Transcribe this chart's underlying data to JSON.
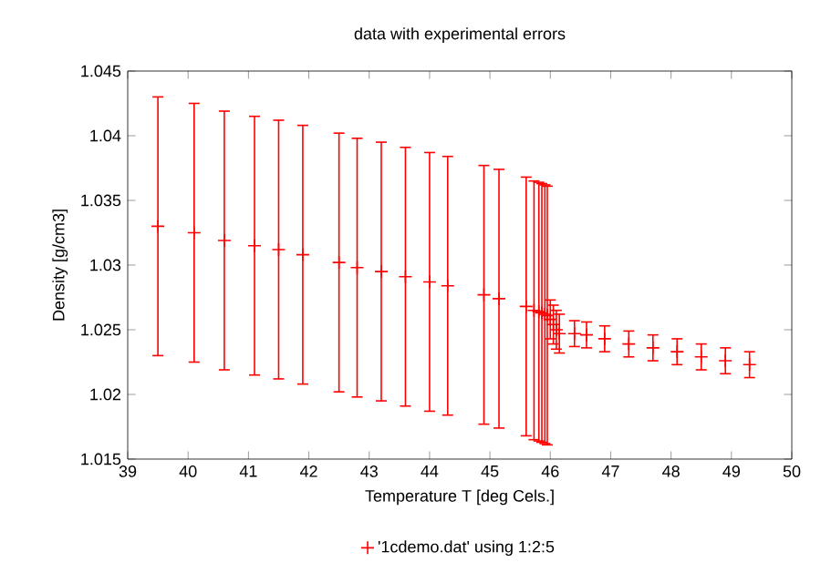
{
  "chart_data": {
    "type": "scatter",
    "title": "data with experimental errors",
    "xlabel": "Temperature T  [deg Cels.]",
    "ylabel": "Density [g/cm3]",
    "xlim": [
      39,
      50
    ],
    "xticks": [
      39,
      40,
      41,
      42,
      43,
      44,
      45,
      46,
      47,
      48,
      49,
      50
    ],
    "ylim": [
      1.015,
      1.045
    ],
    "yticks": [
      1.015,
      1.02,
      1.025,
      1.03,
      1.035,
      1.04,
      1.045
    ],
    "legend": "bottom",
    "marker": "cross",
    "grid": false,
    "series": [
      {
        "name": "'1cdemo.dat' using 1:2:5",
        "color": "#ff0000",
        "x": [
          39.5,
          40.1,
          40.6,
          41.1,
          41.5,
          41.9,
          42.5,
          42.8,
          43.2,
          43.6,
          44.0,
          44.3,
          44.9,
          45.15,
          45.6,
          45.73,
          45.81,
          45.86,
          45.91,
          45.95,
          46.0,
          46.05,
          46.1,
          46.15,
          46.4,
          46.6,
          46.9,
          47.3,
          47.7,
          48.1,
          48.5,
          48.9,
          49.3
        ],
        "values": [
          1.033,
          1.0325,
          1.0319,
          1.0315,
          1.0312,
          1.0308,
          1.0302,
          1.0298,
          1.0295,
          1.0291,
          1.0287,
          1.0284,
          1.0277,
          1.0274,
          1.0268,
          1.0265,
          1.0264,
          1.0263,
          1.0262,
          1.0261,
          1.0258,
          1.0254,
          1.025,
          1.0247,
          1.0247,
          1.0246,
          1.0243,
          1.0239,
          1.0236,
          1.0233,
          1.0229,
          1.0226,
          1.0223
        ],
        "errors": [
          0.01,
          0.01,
          0.01,
          0.01,
          0.01,
          0.01,
          0.01,
          0.01,
          0.01,
          0.01,
          0.01,
          0.01,
          0.01,
          0.01,
          0.01,
          0.01,
          0.01,
          0.01,
          0.01,
          0.01,
          0.0015,
          0.0015,
          0.0015,
          0.0015,
          0.001,
          0.001,
          0.001,
          0.001,
          0.001,
          0.001,
          0.001,
          0.001,
          0.001
        ]
      }
    ]
  }
}
